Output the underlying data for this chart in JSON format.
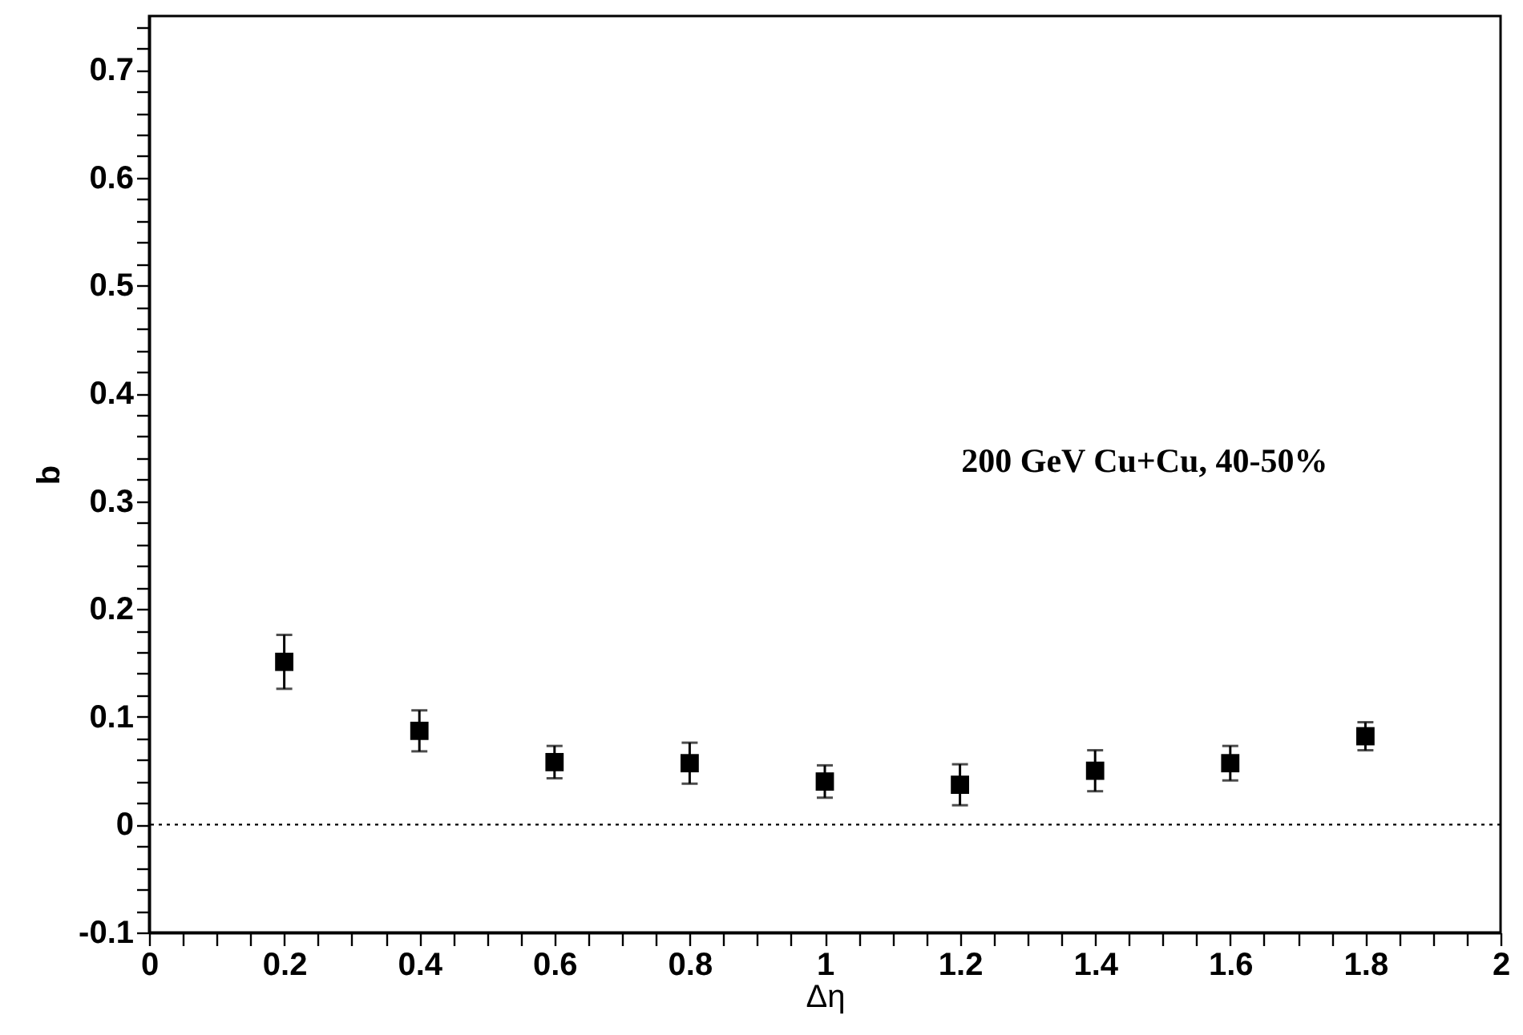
{
  "chart_data": {
    "type": "scatter",
    "xlabel": "Δη",
    "ylabel": "b",
    "annotations": [
      "200 GeV Cu+Cu, 40-50%"
    ],
    "x": [
      0.2,
      0.4,
      0.6,
      0.8,
      1.0,
      1.2,
      1.4,
      1.6,
      1.8
    ],
    "series": [
      {
        "color": "#000000",
        "values": [
          0.151,
          0.087,
          0.058,
          0.057,
          0.04,
          0.037,
          0.05,
          0.057,
          0.082
        ],
        "errors": [
          0.025,
          0.019,
          0.015,
          0.019,
          0.015,
          0.019,
          0.019,
          0.016,
          0.013
        ]
      }
    ],
    "marker": "square",
    "xlim": [
      0,
      2
    ],
    "ylim": [
      -0.1,
      0.75
    ],
    "xticks": [
      0,
      {
        "value": 0.05,
        "label": null
      },
      {
        "value": 0.1,
        "label": null
      },
      {
        "value": 0.15,
        "label": null
      },
      0.2,
      {
        "value": 0.25,
        "label": null
      },
      {
        "value": 0.3,
        "label": null
      },
      {
        "value": 0.35,
        "label": null
      },
      0.4,
      {
        "value": 0.45,
        "label": null
      },
      {
        "value": 0.5,
        "label": null
      },
      {
        "value": 0.55,
        "label": null
      },
      0.6,
      {
        "value": 0.65,
        "label": null
      },
      {
        "value": 0.7,
        "label": null
      },
      {
        "value": 0.75,
        "label": null
      },
      0.8,
      {
        "value": 0.85,
        "label": null
      },
      {
        "value": 0.9,
        "label": null
      },
      {
        "value": 0.95,
        "label": null
      },
      1,
      {
        "value": 1.05,
        "label": null
      },
      {
        "value": 1.1,
        "label": null
      },
      {
        "value": 1.15,
        "label": null
      },
      1.2,
      {
        "value": 1.25,
        "label": null
      },
      {
        "value": 1.3,
        "label": null
      },
      {
        "value": 1.35,
        "label": null
      },
      1.4,
      {
        "value": 1.45,
        "label": null
      },
      {
        "value": 1.5,
        "label": null
      },
      {
        "value": 1.55,
        "label": null
      },
      1.6,
      {
        "value": 1.65,
        "label": null
      },
      {
        "value": 1.7,
        "label": null
      },
      {
        "value": 1.75,
        "label": null
      },
      1.8,
      {
        "value": 1.85,
        "label": null
      },
      {
        "value": 1.9,
        "label": null
      },
      {
        "value": 1.95,
        "label": null
      },
      2
    ],
    "yticks": [
      -0.1,
      {
        "value": -0.08,
        "label": null
      },
      {
        "value": -0.06,
        "label": null
      },
      {
        "value": -0.04,
        "label": null
      },
      {
        "value": -0.02,
        "label": null
      },
      0,
      {
        "value": 0.02,
        "label": null
      },
      {
        "value": 0.04,
        "label": null
      },
      {
        "value": 0.06,
        "label": null
      },
      {
        "value": 0.08,
        "label": null
      },
      0.1,
      {
        "value": 0.12,
        "label": null
      },
      {
        "value": 0.14,
        "label": null
      },
      {
        "value": 0.16,
        "label": null
      },
      {
        "value": 0.18,
        "label": null
      },
      0.2,
      {
        "value": 0.22,
        "label": null
      },
      {
        "value": 0.24,
        "label": null
      },
      {
        "value": 0.26,
        "label": null
      },
      {
        "value": 0.28,
        "label": null
      },
      0.3,
      {
        "value": 0.32,
        "label": null
      },
      {
        "value": 0.34,
        "label": null
      },
      {
        "value": 0.36,
        "label": null
      },
      {
        "value": 0.38,
        "label": null
      },
      0.4,
      {
        "value": 0.42,
        "label": null
      },
      {
        "value": 0.44,
        "label": null
      },
      {
        "value": 0.46,
        "label": null
      },
      {
        "value": 0.48,
        "label": null
      },
      0.5,
      {
        "value": 0.52,
        "label": null
      },
      {
        "value": 0.54,
        "label": null
      },
      {
        "value": 0.56,
        "label": null
      },
      {
        "value": 0.58,
        "label": null
      },
      0.6,
      {
        "value": 0.62,
        "label": null
      },
      {
        "value": 0.64,
        "label": null
      },
      {
        "value": 0.66,
        "label": null
      },
      {
        "value": 0.68,
        "label": null
      },
      0.7,
      {
        "value": 0.72,
        "label": null
      },
      {
        "value": 0.74,
        "label": null
      }
    ],
    "ref_lines": [
      {
        "axis": "y",
        "value": 0,
        "line_style": "dotted",
        "color": "#000000"
      }
    ],
    "grid": false
  }
}
